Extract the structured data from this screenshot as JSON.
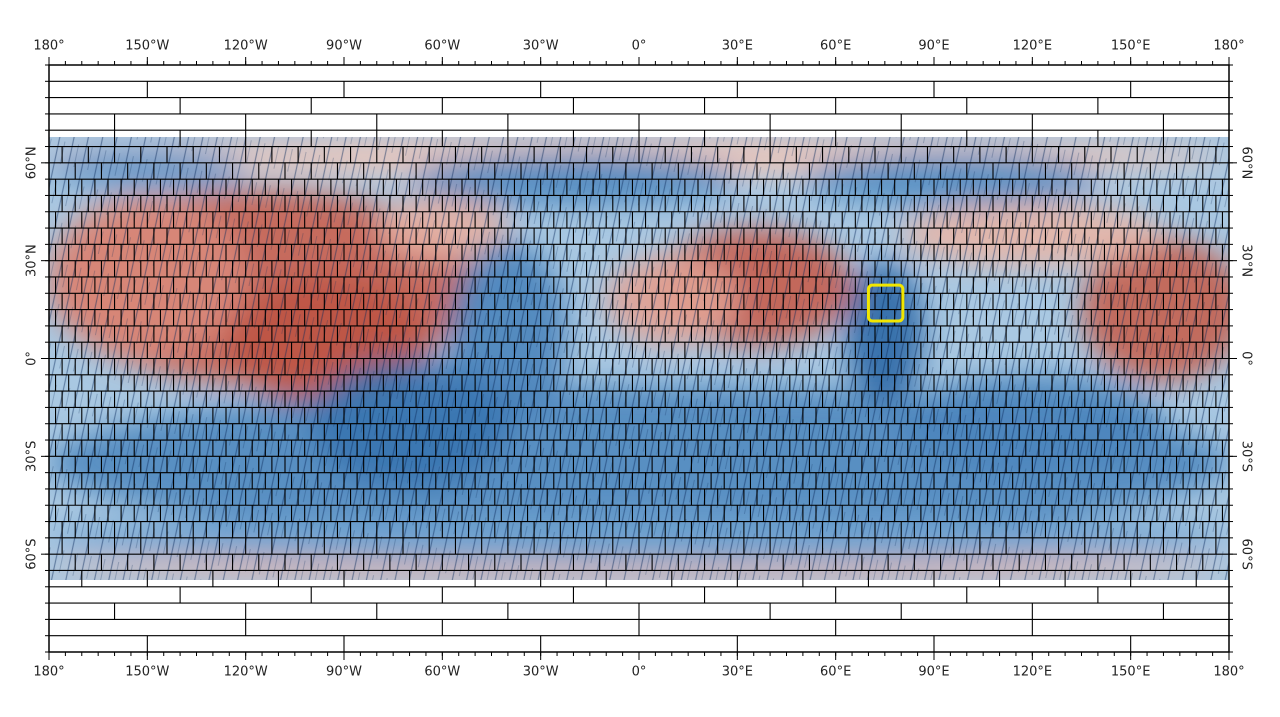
{
  "map": {
    "lon_labels": [
      {
        "value": -180,
        "label": "180°"
      },
      {
        "value": -150,
        "label": "150°W"
      },
      {
        "value": -120,
        "label": "120°W"
      },
      {
        "value": -90,
        "label": "90°W"
      },
      {
        "value": -60,
        "label": "60°W"
      },
      {
        "value": -30,
        "label": "30°W"
      },
      {
        "value": 0,
        "label": "0°"
      },
      {
        "value": 30,
        "label": "30°E"
      },
      {
        "value": 60,
        "label": "60°E"
      },
      {
        "value": 90,
        "label": "90°E"
      },
      {
        "value": 120,
        "label": "120°E"
      },
      {
        "value": 150,
        "label": "150°E"
      },
      {
        "value": 180,
        "label": "180°"
      }
    ],
    "lat_labels": [
      {
        "value": 60,
        "label": "60°N"
      },
      {
        "value": 30,
        "label": "30°N"
      },
      {
        "value": 0,
        "label": "0°"
      },
      {
        "value": -30,
        "label": "30°S"
      },
      {
        "value": -60,
        "label": "60°S"
      }
    ],
    "xlim": [
      -180,
      180
    ],
    "ylim": [
      -90,
      90
    ]
  }
}
